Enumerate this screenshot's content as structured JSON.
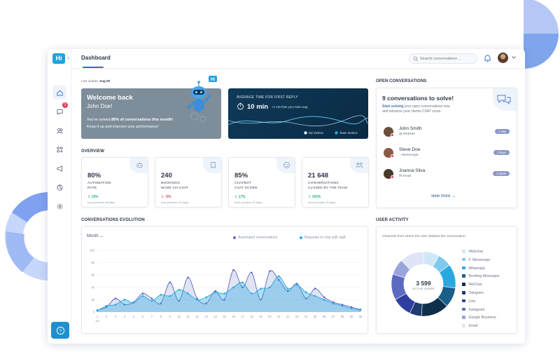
{
  "header": {
    "page_title": "Dashboard",
    "logo_text": "Hi",
    "search_placeholder": "Search conversations ..."
  },
  "sidebar": {
    "items": [
      {
        "icon": "home-icon",
        "active": true
      },
      {
        "icon": "chat-icon",
        "badge": "3"
      },
      {
        "icon": "users-icon"
      },
      {
        "icon": "apps-icon"
      },
      {
        "icon": "megaphone-icon"
      },
      {
        "icon": "analytics-icon"
      },
      {
        "icon": "gear-icon"
      }
    ],
    "help_icon": "question-icon"
  },
  "last_update": {
    "label": "Last update:",
    "date": "Aug 09"
  },
  "welcome": {
    "title": "Welcome back",
    "name": "John Doe!",
    "message_prefix": "You've solved ",
    "message_bold": "80% of conversations this month!",
    "message_line2": "Keep it up and improve your performance!",
    "robot_badge": "Hi"
  },
  "avg_reply": {
    "label": "AVERAGE TIME FOR FIRST REPLY",
    "value": "10 min",
    "comparison": "+1 min than your team avg.",
    "legend_mine": "My metrics",
    "legend_team": "Team metrics"
  },
  "overview": {
    "title": "OVERVIEW",
    "cards": [
      {
        "value": "80%",
        "label1": "AUTOMATION",
        "label2": "RATE",
        "delta": "16%",
        "direction": "up",
        "prev": "from previous 30 days",
        "icon": "robot-icon"
      },
      {
        "value": "240",
        "label1": "BOOKINGS",
        "label2": "MADE VIA CHAT",
        "delta": "-6%",
        "direction": "down",
        "prev": "from previous 30 days",
        "icon": "bookmark-icon"
      },
      {
        "value": "85%",
        "label1": "CHATBOT",
        "label2": "CSAT SCORE",
        "delta": "17%",
        "direction": "up",
        "prev": "from previous 30 days",
        "icon": "smiley-icon"
      },
      {
        "value": "21 648",
        "label1": "CONVERSATIONS",
        "label2": "CLOSED BY THE TEAM",
        "delta": "150%",
        "direction": "up",
        "prev": "from previous 30 days",
        "icon": "team-icon"
      }
    ]
  },
  "open_conversations": {
    "section_title": "OPEN CONVERSATIONS",
    "title": "9 conversations to solve!",
    "sub_bold": "Start solving",
    "sub_rest": " your open conversations now",
    "sub_line2": "and enhance your clients CSAT score.",
    "items": [
      {
        "name": "John Smith",
        "source": "Website",
        "age": "1 day",
        "avatar_color": "#6b4f3a"
      },
      {
        "name": "Steve Doe",
        "source": "Messenger",
        "age": "2 days",
        "avatar_color": "#8a5a44"
      },
      {
        "name": "Joanna Silva",
        "source": "Email",
        "age": "1 week",
        "avatar_color": "#4a3a2c"
      }
    ],
    "view_more": "view more"
  },
  "evolution": {
    "section_title": "CONVERSATIONS EVOLUTION",
    "filter": "Month",
    "legend_auto": "Automated conversations",
    "legend_staff": "Requests to chat with staff",
    "colors": {
      "auto": "#5c6bc0",
      "staff": "#29a9e0"
    }
  },
  "user_activity": {
    "section_title": "USER ACTIVITY",
    "subtitle": "Channels from where the user initiated the conversation.",
    "total": "3 599",
    "total_label": "ACTIVE USERS",
    "channels": [
      {
        "name": "Webchat",
        "color": "#cfe8f7"
      },
      {
        "name": "F. Messenger",
        "color": "#7fc9ee"
      },
      {
        "name": "Whatsapp",
        "color": "#29a9e0"
      },
      {
        "name": "Booking Messages",
        "color": "#1a5f8a"
      },
      {
        "name": "WeChat",
        "color": "#0d2f4a"
      },
      {
        "name": "Telegram",
        "color": "#1e3a6e"
      },
      {
        "name": "Line",
        "color": "#2f3fa0"
      },
      {
        "name": "Instagram",
        "color": "#5c6bc0"
      },
      {
        "name": "Google Business",
        "color": "#9aa5dd"
      },
      {
        "name": "Email",
        "color": "#dfe4f6"
      }
    ]
  },
  "chart_data": [
    {
      "type": "area",
      "title": "CONVERSATIONS EVOLUTION",
      "xlabel": "",
      "ylabel": "",
      "x": [
        1,
        2,
        3,
        4,
        5,
        6,
        7,
        8,
        9,
        10,
        11,
        12,
        13,
        14,
        15,
        16,
        17,
        18,
        19,
        20,
        21,
        22,
        23,
        24,
        25,
        26,
        27,
        28,
        29,
        30
      ],
      "x_sublabel": "Jan",
      "ylim": [
        0,
        100
      ],
      "yticks": [
        0,
        20,
        40,
        60,
        80,
        100
      ],
      "series": [
        {
          "name": "Automated conversations",
          "values": [
            3,
            8,
            22,
            12,
            16,
            30,
            22,
            14,
            48,
            18,
            56,
            22,
            14,
            34,
            20,
            68,
            40,
            64,
            20,
            66,
            52,
            34,
            46,
            22,
            38,
            24,
            16,
            12,
            8,
            4
          ]
        },
        {
          "name": "Requests to chat with staff",
          "values": [
            2,
            10,
            12,
            20,
            15,
            26,
            18,
            28,
            26,
            36,
            30,
            20,
            24,
            32,
            30,
            40,
            48,
            30,
            38,
            40,
            58,
            38,
            44,
            32,
            26,
            20,
            14,
            10,
            6,
            3
          ]
        }
      ],
      "grid": true
    },
    {
      "type": "pie",
      "title": "USER ACTIVITY",
      "categories": [
        "Webchat",
        "F. Messenger",
        "Whatsapp",
        "Booking Messages",
        "WeChat",
        "Telegram",
        "Line",
        "Instagram",
        "Google Business",
        "Email"
      ],
      "values": [
        8,
        7,
        12,
        10,
        14,
        6,
        10,
        13,
        8,
        12
      ],
      "donut": true
    }
  ]
}
